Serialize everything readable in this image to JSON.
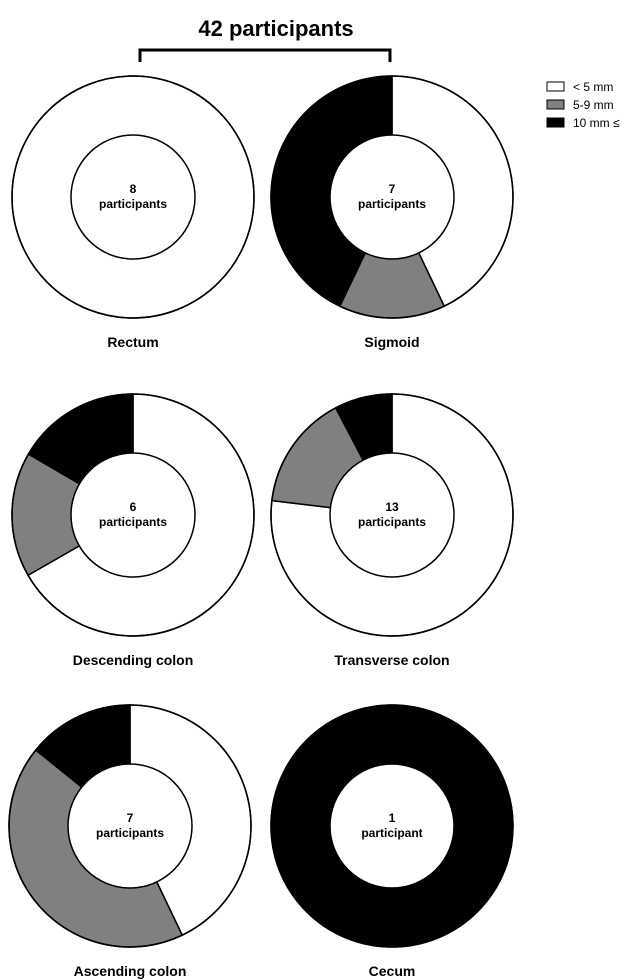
{
  "header": {
    "title": "42 participants"
  },
  "legend": {
    "entries": [
      {
        "label": "< 5 mm",
        "color": "#ffffff"
      },
      {
        "label": "5-9 mm",
        "color": "#808080"
      },
      {
        "label": "10 mm ≤",
        "color": "#000000"
      }
    ]
  },
  "chart_data": {
    "type": "pie",
    "title": "42 participants",
    "series_names": [
      "< 5 mm",
      "5-9 mm",
      "10 mm ≤"
    ],
    "colors": [
      "#ffffff",
      "#808080",
      "#000000"
    ],
    "charts": [
      {
        "label": "Rectum",
        "center_count": "8",
        "center_unit": "participants",
        "values": [
          100,
          0,
          0
        ]
      },
      {
        "label": "Sigmoid",
        "center_count": "7",
        "center_unit": "participants",
        "values": [
          42.9,
          14.2,
          42.9
        ]
      },
      {
        "label": "Descending colon",
        "center_count": "6",
        "center_unit": "participants",
        "values": [
          66.7,
          16.7,
          16.6
        ]
      },
      {
        "label": "Transverse colon",
        "center_count": "13",
        "center_unit": "participants",
        "values": [
          76.9,
          15.4,
          7.7
        ]
      },
      {
        "label": "Ascending colon",
        "center_count": "7",
        "center_unit": "participants",
        "values": [
          42.9,
          42.9,
          14.2
        ]
      },
      {
        "label": "Cecum",
        "center_count": "1",
        "center_unit": "participant",
        "values": [
          0,
          0,
          100
        ]
      }
    ]
  }
}
